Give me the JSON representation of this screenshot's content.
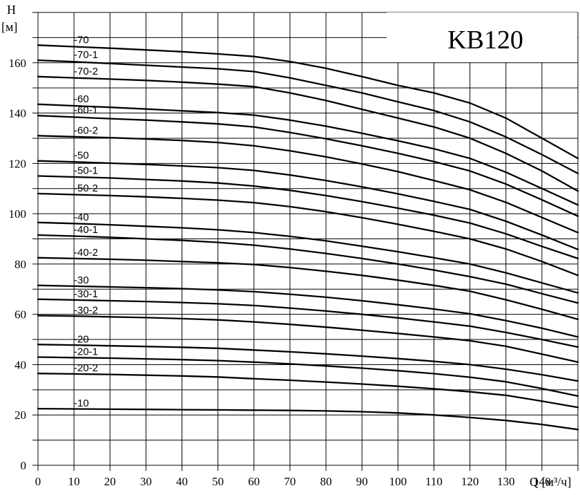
{
  "chart_data": {
    "type": "line",
    "title": "KB120",
    "ylabel": "H",
    "ylabel_unit": "[м]",
    "xlabel": "Q [м³/ч]",
    "xlim": [
      0,
      150
    ],
    "ylim": [
      0,
      180
    ],
    "x_ticks": [
      0,
      10,
      20,
      30,
      40,
      50,
      60,
      70,
      80,
      90,
      100,
      110,
      120,
      130,
      140
    ],
    "y_ticks": [
      0,
      20,
      40,
      60,
      80,
      100,
      120,
      140,
      160
    ],
    "grid": true,
    "x": [
      0,
      10,
      20,
      30,
      40,
      50,
      60,
      70,
      80,
      90,
      100,
      110,
      120,
      130,
      140,
      150
    ],
    "series": [
      {
        "name": "-70",
        "values": [
          167.0,
          166.4,
          165.8,
          165.1,
          164.4,
          163.5,
          162.5,
          160.5,
          157.8,
          154.5,
          151.0,
          148.0,
          144.0,
          138.0,
          130.0,
          122.0
        ]
      },
      {
        "name": "-70-1",
        "values": [
          161.0,
          160.4,
          159.7,
          159.0,
          158.3,
          157.6,
          156.5,
          154.0,
          151.0,
          148.0,
          144.5,
          141.0,
          136.5,
          130.5,
          123.5,
          116.0
        ]
      },
      {
        "name": "-70-2",
        "values": [
          154.5,
          154.0,
          153.5,
          153.0,
          152.3,
          151.5,
          150.5,
          148.0,
          145.0,
          141.5,
          138.0,
          134.5,
          130.0,
          124.0,
          117.0,
          109.0
        ]
      },
      {
        "name": "-60",
        "values": [
          143.5,
          142.9,
          142.3,
          141.6,
          140.9,
          140.2,
          139.2,
          137.2,
          134.8,
          132.0,
          129.0,
          125.8,
          122.0,
          116.5,
          110.0,
          103.5
        ]
      },
      {
        "name": "-60-1",
        "values": [
          139.0,
          138.4,
          137.8,
          137.2,
          136.5,
          135.7,
          134.5,
          132.3,
          129.8,
          127.0,
          124.0,
          120.7,
          117.0,
          111.8,
          105.5,
          99.0
        ]
      },
      {
        "name": "-60-2",
        "values": [
          131.0,
          130.6,
          130.2,
          129.7,
          129.1,
          128.3,
          127.0,
          125.0,
          122.6,
          119.8,
          116.7,
          113.2,
          109.5,
          104.5,
          98.5,
          92.5
        ]
      },
      {
        "name": "-50",
        "values": [
          121.0,
          120.6,
          120.1,
          119.6,
          119.0,
          118.3,
          117.2,
          115.4,
          113.2,
          110.7,
          107.9,
          104.9,
          101.7,
          97.0,
          91.5,
          85.8
        ]
      },
      {
        "name": "-50-1",
        "values": [
          115.0,
          114.6,
          114.2,
          113.6,
          113.0,
          112.2,
          111.0,
          109.3,
          107.2,
          104.8,
          102.2,
          99.4,
          96.3,
          92.0,
          87.0,
          82.2
        ]
      },
      {
        "name": "-50-2",
        "values": [
          108.0,
          107.6,
          107.2,
          106.7,
          106.1,
          105.4,
          104.4,
          102.8,
          100.8,
          98.4,
          95.8,
          93.0,
          90.0,
          86.0,
          81.0,
          75.5
        ]
      },
      {
        "name": "-40",
        "values": [
          96.5,
          96.1,
          95.6,
          95.0,
          94.4,
          93.6,
          92.5,
          91.0,
          89.2,
          87.1,
          84.9,
          82.5,
          80.0,
          76.5,
          72.5,
          68.5
        ]
      },
      {
        "name": "-40-1",
        "values": [
          91.5,
          91.1,
          90.6,
          90.0,
          89.4,
          88.6,
          87.5,
          86.0,
          84.2,
          82.2,
          80.0,
          77.6,
          75.0,
          72.0,
          68.2,
          64.5
        ]
      },
      {
        "name": "-40-2",
        "values": [
          82.5,
          82.2,
          81.9,
          81.5,
          81.0,
          80.5,
          79.8,
          78.6,
          77.1,
          75.5,
          73.6,
          71.5,
          69.2,
          65.8,
          62.0,
          58.0
        ]
      },
      {
        "name": "-30",
        "values": [
          71.5,
          71.2,
          70.9,
          70.6,
          70.2,
          69.7,
          69.0,
          68.0,
          66.8,
          65.4,
          63.8,
          62.1,
          60.2,
          57.5,
          54.5,
          51.0
        ]
      },
      {
        "name": "-30-1",
        "values": [
          66.0,
          65.7,
          65.4,
          65.1,
          64.7,
          64.2,
          63.5,
          62.5,
          61.3,
          60.0,
          58.6,
          57.0,
          55.3,
          52.8,
          50.0,
          47.0
        ]
      },
      {
        "name": "-30-2",
        "values": [
          59.5,
          59.3,
          59.0,
          58.7,
          58.3,
          57.8,
          57.0,
          56.0,
          54.9,
          53.7,
          52.4,
          51.0,
          49.5,
          47.3,
          44.2,
          41.0
        ]
      },
      {
        "name": "-20",
        "values": [
          48.0,
          47.8,
          47.5,
          47.2,
          46.9,
          46.5,
          45.8,
          45.1,
          44.3,
          43.4,
          42.4,
          41.3,
          40.0,
          38.2,
          36.0,
          33.5
        ]
      },
      {
        "name": "-20-1",
        "values": [
          43.0,
          42.8,
          42.6,
          42.3,
          42.0,
          41.6,
          41.0,
          40.3,
          39.5,
          38.6,
          37.6,
          36.4,
          35.0,
          33.2,
          30.5,
          27.5
        ]
      },
      {
        "name": "-20-2",
        "values": [
          36.5,
          36.3,
          36.1,
          35.8,
          35.5,
          35.1,
          34.4,
          33.8,
          33.1,
          32.3,
          31.4,
          30.4,
          29.2,
          27.8,
          25.5,
          23.0
        ]
      },
      {
        "name": "-10",
        "values": [
          22.5,
          22.4,
          22.3,
          22.2,
          22.1,
          22.0,
          21.9,
          21.8,
          21.6,
          21.3,
          20.8,
          20.0,
          19.0,
          17.8,
          16.2,
          14.2
        ]
      }
    ]
  }
}
